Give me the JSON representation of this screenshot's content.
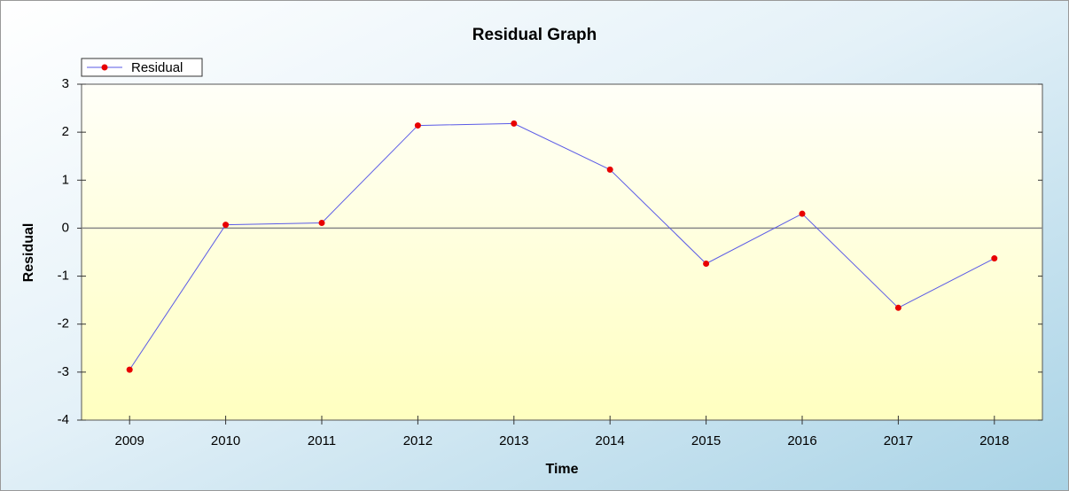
{
  "chart_data": {
    "type": "line",
    "title": "Residual Graph",
    "x_label": "Time",
    "y_label": "Residual",
    "categories": [
      "2009",
      "2010",
      "2011",
      "2012",
      "2013",
      "2014",
      "2015",
      "2016",
      "2017",
      "2018"
    ],
    "series": [
      {
        "name": "Residual",
        "color": "#5a5ae6",
        "marker_color": "#e80000",
        "values": [
          -2.95,
          0.07,
          0.11,
          2.14,
          2.18,
          1.22,
          -0.74,
          0.3,
          -1.66,
          -0.63
        ]
      }
    ],
    "ylim": [
      -4,
      3
    ],
    "yticks": [
      -4,
      -3,
      -2,
      -1,
      0,
      1,
      2,
      3
    ],
    "zero_line": true,
    "legend": "top-left"
  }
}
